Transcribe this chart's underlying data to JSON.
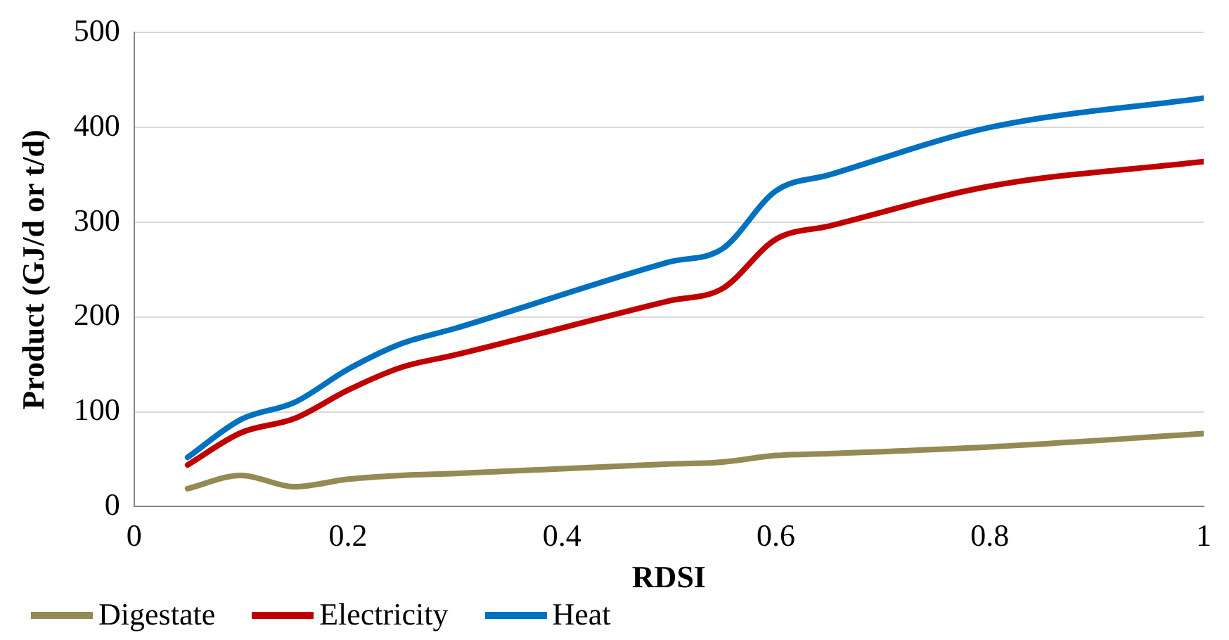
{
  "chart_data": {
    "type": "line",
    "xlabel": "RDSI",
    "ylabel": "Product (GJ/d or t/d)",
    "x": [
      0.05,
      0.1,
      0.15,
      0.2,
      0.25,
      0.3,
      0.5,
      0.55,
      0.6,
      0.65,
      0.8,
      1
    ],
    "series": [
      {
        "name": "Digestate",
        "color": "#948a54",
        "values": [
          19,
          33,
          21,
          29,
          33,
          35,
          45,
          47,
          54,
          56,
          63,
          77
        ]
      },
      {
        "name": "Electricity",
        "color": "#c00000",
        "values": [
          44,
          78,
          93,
          123,
          147,
          160,
          217,
          230,
          282,
          296,
          338,
          364
        ]
      },
      {
        "name": "Heat",
        "color": "#0070c0",
        "values": [
          52,
          92,
          110,
          145,
          172,
          188,
          258,
          272,
          333,
          350,
          400,
          431
        ]
      }
    ],
    "xlim": [
      0,
      1
    ],
    "xticks": [
      0,
      0.2,
      0.4,
      0.6,
      0.8,
      1
    ],
    "ylim": [
      0,
      500
    ],
    "yticks": [
      0,
      100,
      200,
      300,
      400,
      500
    ],
    "grid": "y",
    "legend": "bottom left",
    "marker": "none",
    "line_style": "solid"
  }
}
